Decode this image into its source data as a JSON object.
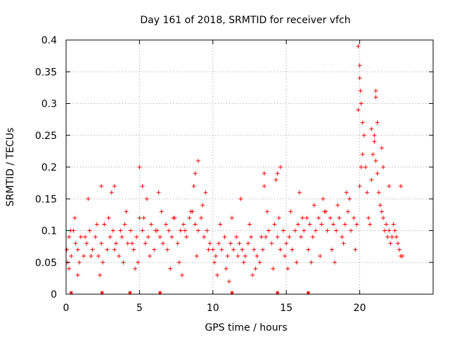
{
  "chart_data": {
    "type": "scatter",
    "title": "Day 161 of 2018, SRMTID for receiver vfch",
    "xlabel": "GPS time / hours",
    "ylabel": "SRMTID / TECUs",
    "xlim": [
      0,
      25
    ],
    "ylim": [
      0,
      0.4
    ],
    "x_ticks": [
      0,
      5,
      10,
      15,
      20
    ],
    "x_tick_labels": [
      "0",
      "5",
      "10",
      "15",
      "20"
    ],
    "y_ticks": [
      0,
      0.05,
      0.1,
      0.15,
      0.2,
      0.25,
      0.3,
      0.35,
      0.4
    ],
    "y_tick_labels": [
      "0",
      "0.05",
      "0.1",
      "0.15",
      "0.2",
      "0.25",
      "0.3",
      "0.35",
      "0.4"
    ],
    "grid": true,
    "marker": "+",
    "color": "#ff0000",
    "series": [
      {
        "name": "SRMTID",
        "x": [
          0.05,
          0.2,
          0.35,
          0.5,
          0.65,
          0.8,
          1.0,
          1.2,
          1.4,
          1.6,
          1.8,
          2.0,
          2.2,
          2.4,
          2.6,
          2.8,
          3.0,
          3.2,
          3.4,
          3.6,
          3.8,
          4.0,
          4.2,
          4.4,
          4.6,
          4.8,
          5.0,
          5.2,
          5.4,
          5.6,
          5.8,
          6.0,
          6.2,
          6.4,
          6.6,
          6.8,
          7.0,
          7.2,
          7.4,
          7.6,
          7.8,
          8.0,
          8.2,
          8.4,
          8.6,
          8.8,
          9.0,
          9.2,
          9.4,
          9.6,
          9.8,
          10.0,
          10.2,
          10.4,
          10.6,
          10.8,
          11.0,
          11.2,
          11.4,
          11.6,
          11.8,
          12.0,
          12.2,
          12.4,
          12.6,
          12.8,
          13.0,
          13.2,
          13.4,
          13.6,
          13.8,
          14.0,
          14.2,
          14.4,
          14.6,
          14.8,
          15.0,
          15.2,
          15.4,
          15.6,
          15.8,
          16.0,
          16.2,
          16.4,
          16.6,
          16.8,
          17.0,
          17.2,
          17.4,
          17.6,
          17.8,
          18.0,
          18.2,
          18.4,
          18.6,
          18.8,
          19.0,
          19.2,
          19.4,
          19.6,
          19.8,
          20.0,
          20.1,
          20.2,
          20.3,
          20.4,
          20.5,
          20.6,
          20.7,
          20.8,
          20.9,
          21.0,
          21.1,
          21.2,
          21.3,
          21.4,
          21.5,
          21.6,
          21.7,
          21.8,
          21.9,
          22.0,
          22.1,
          22.2,
          22.3,
          22.4,
          22.5,
          22.6,
          22.7,
          22.8,
          22.9,
          0.1,
          0.3,
          0.6,
          0.9,
          1.3,
          1.7,
          2.1,
          2.5,
          2.9,
          3.3,
          3.7,
          4.1,
          4.5,
          4.9,
          5.3,
          5.7,
          6.1,
          6.5,
          6.9,
          7.3,
          7.7,
          8.1,
          8.5,
          8.9,
          9.3,
          9.7,
          10.1,
          10.5,
          10.9,
          11.3,
          11.7,
          12.1,
          12.5,
          12.9,
          13.3,
          13.7,
          14.1,
          14.5,
          14.9,
          15.3,
          15.7,
          16.1,
          16.5,
          16.9,
          17.3,
          17.7,
          18.1,
          18.5,
          18.9,
          19.3,
          19.7,
          0.2,
          0.8,
          1.5,
          2.3,
          3.1,
          3.9,
          4.7,
          5.5,
          6.3,
          7.1,
          7.9,
          8.7,
          9.5,
          10.3,
          11.1,
          11.9,
          12.7,
          13.5,
          14.3,
          15.1,
          15.9,
          16.7,
          17.5,
          18.3,
          19.1,
          19.9,
          2.4,
          3.3,
          5.0,
          5.2,
          8.8,
          9.0,
          13.5,
          14.4,
          14.6,
          19.9,
          20.0,
          20.0,
          20.05,
          20.1,
          20.2,
          21.1,
          21.1,
          21.2,
          21.0,
          20.8,
          21.5,
          21.6,
          22.0,
          22.8
        ],
        "y": [
          0.07,
          0.09,
          0.06,
          0.1,
          0.08,
          0.07,
          0.09,
          0.06,
          0.08,
          0.1,
          0.07,
          0.09,
          0.06,
          0.08,
          0.11,
          0.07,
          0.09,
          0.1,
          0.08,
          0.06,
          0.09,
          0.11,
          0.08,
          0.1,
          0.07,
          0.09,
          0.12,
          0.1,
          0.08,
          0.09,
          0.11,
          0.07,
          0.1,
          0.09,
          0.08,
          0.11,
          0.1,
          0.09,
          0.12,
          0.08,
          0.1,
          0.11,
          0.09,
          0.12,
          0.13,
          0.11,
          0.1,
          0.12,
          0.09,
          0.1,
          0.08,
          0.07,
          0.06,
          0.08,
          0.07,
          0.09,
          0.06,
          0.08,
          0.07,
          0.09,
          0.08,
          0.07,
          0.06,
          0.08,
          0.09,
          0.07,
          0.06,
          0.05,
          0.07,
          0.09,
          0.1,
          0.08,
          0.11,
          0.09,
          0.07,
          0.1,
          0.08,
          0.09,
          0.07,
          0.1,
          0.11,
          0.09,
          0.1,
          0.12,
          0.11,
          0.09,
          0.1,
          0.12,
          0.11,
          0.13,
          0.1,
          0.12,
          0.11,
          0.1,
          0.12,
          0.09,
          0.11,
          0.13,
          0.1,
          0.12,
          0.11,
          0.17,
          0.2,
          0.22,
          0.25,
          0.2,
          0.16,
          0.12,
          0.11,
          0.18,
          0.22,
          0.25,
          0.21,
          0.19,
          0.16,
          0.14,
          0.13,
          0.12,
          0.1,
          0.11,
          0.09,
          0.1,
          0.08,
          0.09,
          0.11,
          0.1,
          0.09,
          0.08,
          0.07,
          0.06,
          0.06,
          0.05,
          0.1,
          0.12,
          0.05,
          0.09,
          0.06,
          0.11,
          0.05,
          0.12,
          0.07,
          0.1,
          0.13,
          0.08,
          0.05,
          0.12,
          0.06,
          0.1,
          0.13,
          0.07,
          0.12,
          0.05,
          0.1,
          0.13,
          0.06,
          0.14,
          0.07,
          0.05,
          0.11,
          0.04,
          0.12,
          0.06,
          0.05,
          0.11,
          0.04,
          0.09,
          0.13,
          0.04,
          0.12,
          0.06,
          0.13,
          0.05,
          0.12,
          0.07,
          0.14,
          0.06,
          0.13,
          0.07,
          0.14,
          0.08,
          0.15,
          0.07,
          0.04,
          0.03,
          0.15,
          0.03,
          0.16,
          0.05,
          0.04,
          0.15,
          0.16,
          0.04,
          0.03,
          0.17,
          0.16,
          0.03,
          0.02,
          0.15,
          0.03,
          0.17,
          0.18,
          0.04,
          0.16,
          0.05,
          0.15,
          0.05,
          0.16,
          0.29,
          0.17,
          0.17,
          0.2,
          0.17,
          0.19,
          0.21,
          0.19,
          0.19,
          0.2,
          0.39,
          0.36,
          0.34,
          0.32,
          0.3,
          0.27,
          0.31,
          0.32,
          0.27,
          0.24,
          0.26,
          0.23,
          0.2,
          0.17,
          0.17
        ]
      }
    ],
    "bad_data_markers_x": [
      0.35,
      2.45,
      4.35,
      6.4,
      11.3,
      14.4,
      16.5
    ]
  }
}
